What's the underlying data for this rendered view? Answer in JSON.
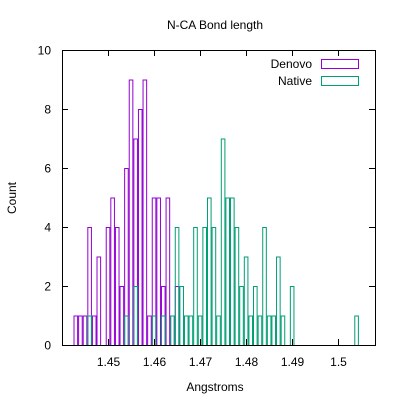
{
  "chart_data": {
    "type": "bar",
    "style": "histogram-outline",
    "title": "N-CA Bond length",
    "xlabel": "Angstroms",
    "ylabel": "Count",
    "xlim": [
      1.44,
      1.508
    ],
    "ylim": [
      0,
      10
    ],
    "bin_width": 0.001,
    "x_ticks": [
      {
        "value": 1.45,
        "label": "1.45"
      },
      {
        "value": 1.46,
        "label": "1.46"
      },
      {
        "value": 1.47,
        "label": "1.47"
      },
      {
        "value": 1.48,
        "label": "1.48"
      },
      {
        "value": 1.49,
        "label": "1.49"
      },
      {
        "value": 1.5,
        "label": "1.5"
      }
    ],
    "y_ticks": [
      {
        "value": 0,
        "label": "0"
      },
      {
        "value": 2,
        "label": "2"
      },
      {
        "value": 4,
        "label": "4"
      },
      {
        "value": 6,
        "label": "6"
      },
      {
        "value": 8,
        "label": "8"
      },
      {
        "value": 10,
        "label": "10"
      }
    ],
    "grid": false,
    "legend_position": "top-right",
    "series": [
      {
        "name": "Denovo",
        "color": "#9400d3",
        "x": [
          1.443,
          1.444,
          1.445,
          1.446,
          1.447,
          1.448,
          1.449,
          1.45,
          1.451,
          1.452,
          1.453,
          1.454,
          1.455,
          1.456,
          1.457,
          1.458,
          1.459,
          1.46,
          1.461,
          1.462,
          1.463,
          1.464,
          1.465
        ],
        "values": [
          1,
          1,
          1,
          4,
          1,
          3,
          0,
          4,
          5,
          4,
          2,
          6,
          9,
          7,
          8,
          9,
          1,
          5,
          5,
          2,
          5,
          1,
          2
        ]
      },
      {
        "name": "Native",
        "color": "#009e73",
        "x": [
          1.446,
          1.454,
          1.456,
          1.46,
          1.462,
          1.464,
          1.465,
          1.466,
          1.467,
          1.468,
          1.469,
          1.47,
          1.471,
          1.472,
          1.473,
          1.474,
          1.475,
          1.476,
          1.477,
          1.478,
          1.479,
          1.48,
          1.481,
          1.482,
          1.483,
          1.484,
          1.485,
          1.486,
          1.487,
          1.488,
          1.49,
          1.504
        ],
        "values": [
          1,
          1,
          2,
          1,
          1,
          1,
          4,
          2,
          1,
          1,
          4,
          1,
          4,
          5,
          4,
          1,
          7,
          5,
          5,
          4,
          2,
          3,
          1,
          2,
          1,
          4,
          1,
          1,
          3,
          1,
          2,
          1
        ]
      }
    ]
  }
}
